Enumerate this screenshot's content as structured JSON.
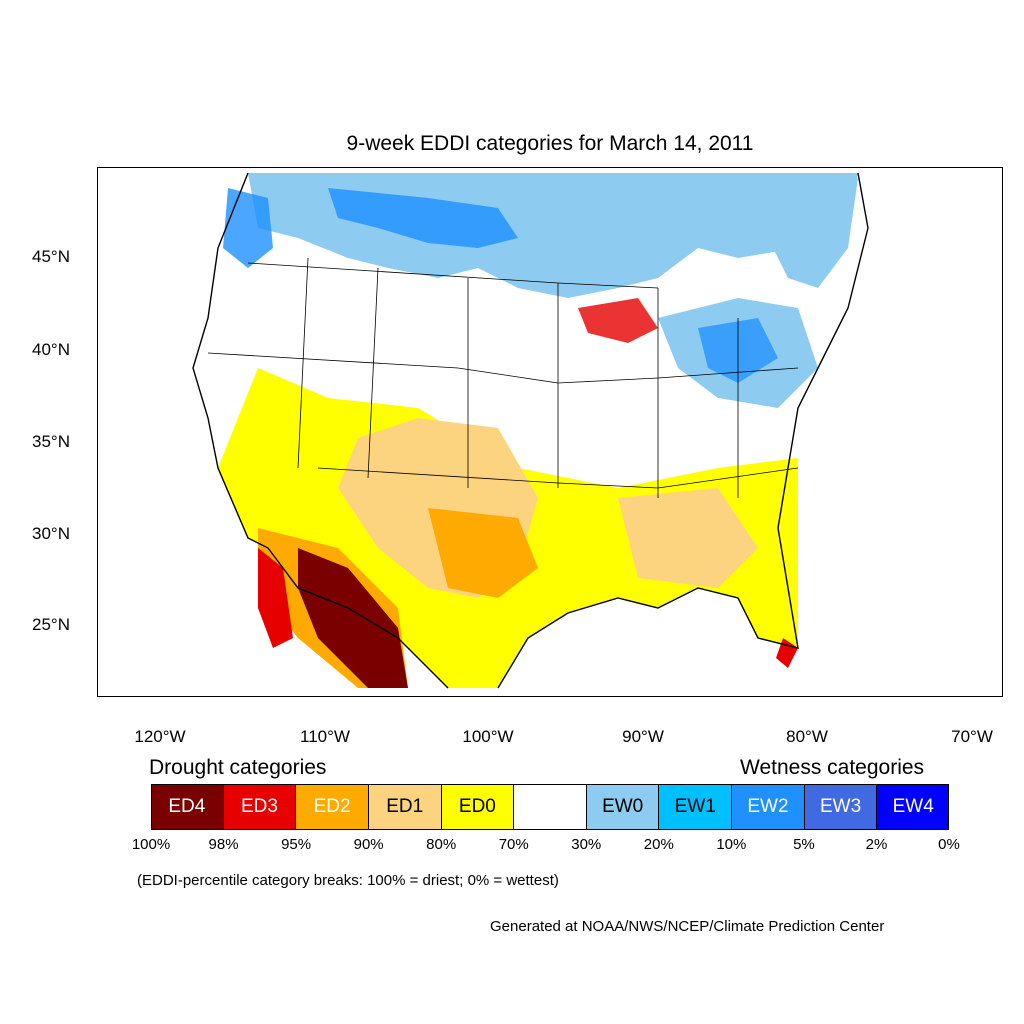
{
  "title": "9-week EDDI categories for March 14, 2011",
  "y_axis_labels": [
    "45°N",
    "40°N",
    "35°N",
    "30°N",
    "25°N"
  ],
  "x_axis_labels": [
    "120°W",
    "110°W",
    "100°W",
    "90°W",
    "80°W",
    "70°W"
  ],
  "legend": {
    "drought_title": "Drought categories",
    "wetness_title": "Wetness categories",
    "categories": [
      {
        "label": "ED4",
        "color": "#7a0000",
        "text_color": "#ffffff"
      },
      {
        "label": "ED3",
        "color": "#e60000",
        "text_color": "#ffffff"
      },
      {
        "label": "ED2",
        "color": "#ffaa00",
        "text_color": "#ffffff"
      },
      {
        "label": "ED1",
        "color": "#fcd37f",
        "text_color": "#000000"
      },
      {
        "label": "ED0",
        "color": "#ffff00",
        "text_color": "#000000"
      },
      {
        "label": "",
        "color": "#ffffff",
        "text_color": "#000000"
      },
      {
        "label": "EW0",
        "color": "#8ecbf0",
        "text_color": "#000000"
      },
      {
        "label": "EW1",
        "color": "#00bfff",
        "text_color": "#000000"
      },
      {
        "label": "EW2",
        "color": "#1e90ff",
        "text_color": "#ffffff"
      },
      {
        "label": "EW3",
        "color": "#4169e1",
        "text_color": "#ffffff"
      },
      {
        "label": "EW4",
        "color": "#0000ff",
        "text_color": "#ffffff"
      }
    ],
    "breaks": [
      "100%",
      "98%",
      "95%",
      "90%",
      "80%",
      "70%",
      "30%",
      "20%",
      "10%",
      "5%",
      "2%",
      "0%"
    ]
  },
  "note": "(EDDI-percentile category breaks: 100% = driest; 0% = wettest)",
  "credit": "Generated at NOAA/NWS/NCEP/Climate Prediction Center"
}
